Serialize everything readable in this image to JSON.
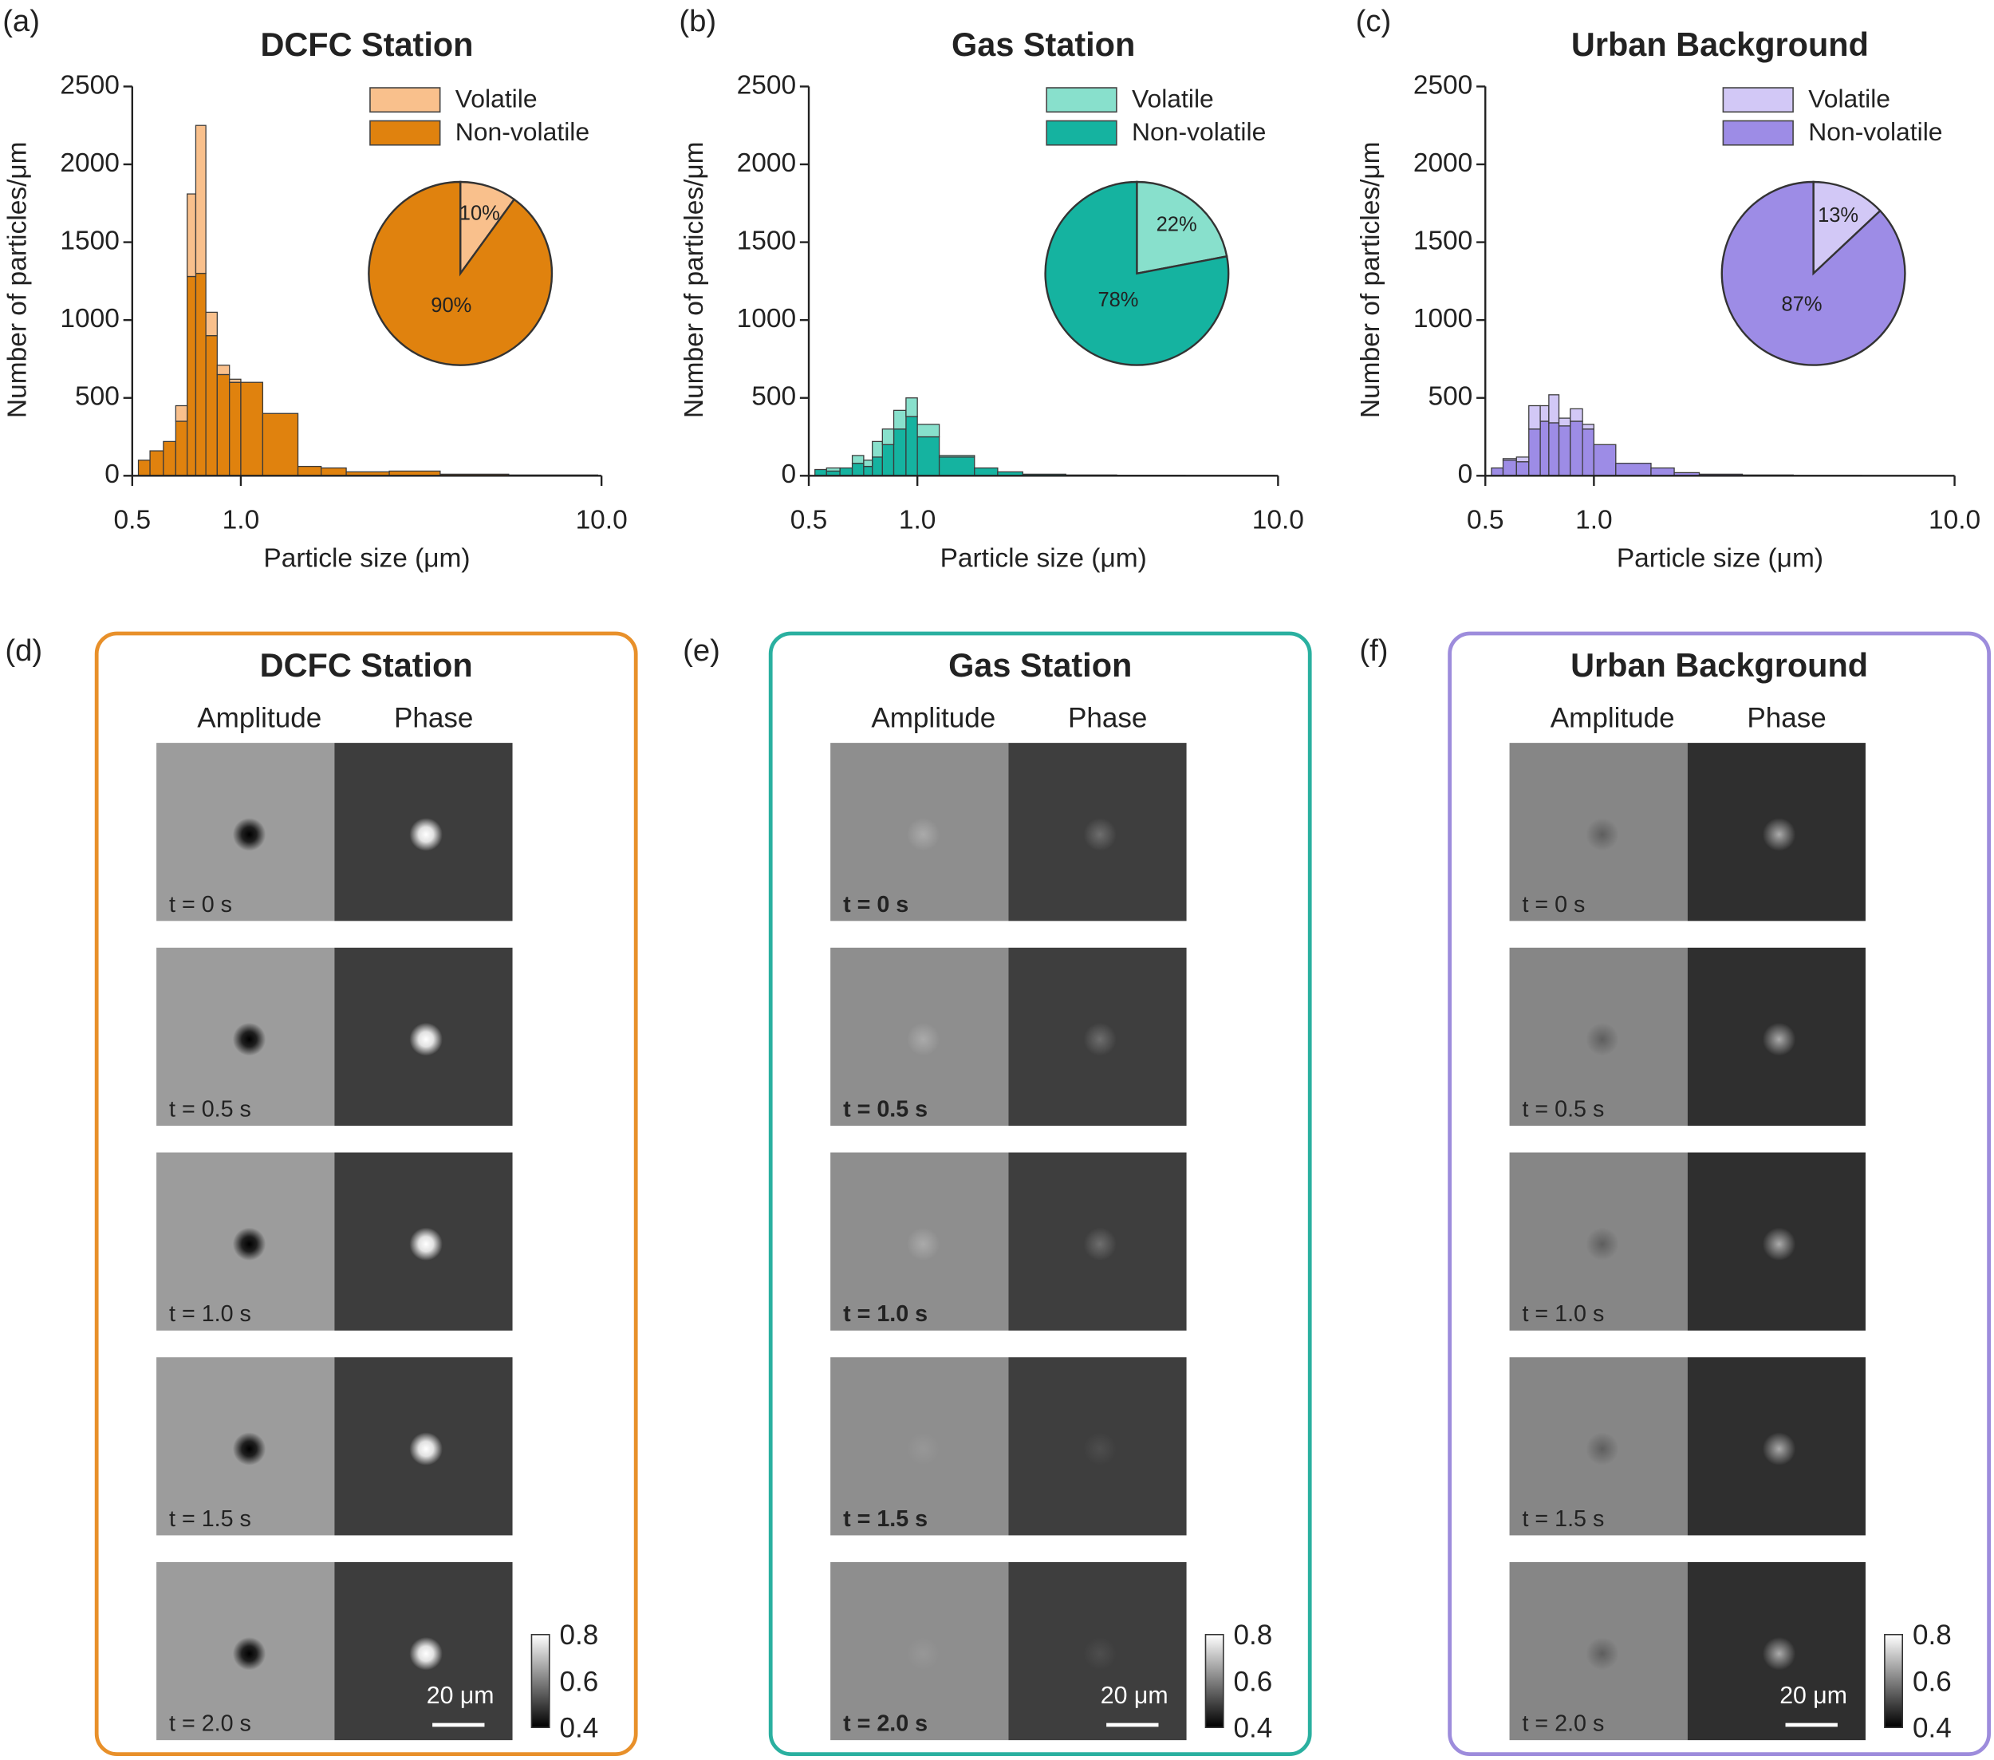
{
  "chart_data": [
    {
      "type": "histogram",
      "panel_label": "(a)",
      "title": "DCFC Station",
      "xlabel": "Particle size (μm)",
      "ylabel": "Number of particles/μm",
      "xscale": "log",
      "xlim": [
        0.5,
        10
      ],
      "xticks": [
        0.5,
        {
          "value": 1,
          "label": "1.0"
        },
        {
          "value": 10,
          "label": "10.0"
        }
      ],
      "ylim": [
        0,
        2500
      ],
      "yticks": [
        0,
        500,
        1000,
        1500,
        2000,
        2500
      ],
      "stacked": true,
      "legend": "upper right",
      "bins": [
        0.52,
        0.56,
        0.61,
        0.66,
        0.71,
        0.75,
        0.8,
        0.86,
        0.93,
        1.0,
        1.15,
        1.44,
        1.67,
        1.96,
        2.58,
        3.57,
        5.53,
        9.76
      ],
      "series": [
        {
          "name": "Volatile",
          "color": "#f9c08c",
          "values": [
            0,
            0,
            0,
            100,
            530,
            950,
            150,
            60,
            20,
            0,
            0,
            0,
            0,
            0,
            0,
            0,
            0
          ]
        },
        {
          "name": "Non-volatile",
          "color": "#e0820e",
          "values": [
            100,
            160,
            220,
            350,
            1280,
            1300,
            900,
            650,
            600,
            600,
            400,
            60,
            50,
            25,
            30,
            10,
            5
          ]
        }
      ],
      "inset": {
        "type": "pie",
        "values": [
          10,
          90
        ],
        "value_labels": [
          "10%",
          "90%"
        ]
      }
    },
    {
      "type": "histogram",
      "panel_label": "(b)",
      "title": "Gas Station",
      "xlabel": "Particle size (μm)",
      "ylabel": "Number of particles/μm",
      "xscale": "log",
      "xlim": [
        0.5,
        10
      ],
      "xticks": [
        0.5,
        {
          "value": 1,
          "label": "1.0"
        },
        {
          "value": 10,
          "label": "10.0"
        }
      ],
      "ylim": [
        0,
        2500
      ],
      "yticks": [
        0,
        500,
        1000,
        1500,
        2000,
        2500
      ],
      "stacked": true,
      "legend": "upper right",
      "bins": [
        0.52,
        0.56,
        0.61,
        0.66,
        0.71,
        0.75,
        0.8,
        0.86,
        0.93,
        1.0,
        1.15,
        1.44,
        1.67,
        1.96,
        2.58,
        3.57,
        5.53,
        9.76
      ],
      "series": [
        {
          "name": "Volatile",
          "color": "#88e0cc",
          "values": [
            0,
            20,
            0,
            50,
            40,
            100,
            100,
            120,
            120,
            80,
            10,
            0,
            0,
            0,
            0,
            0,
            0
          ]
        },
        {
          "name": "Non-volatile",
          "color": "#15b3a0",
          "values": [
            40,
            30,
            50,
            80,
            60,
            120,
            200,
            300,
            380,
            250,
            120,
            50,
            25,
            10,
            5,
            3,
            2
          ]
        }
      ],
      "inset": {
        "type": "pie",
        "values": [
          22,
          78
        ],
        "value_labels": [
          "22%",
          "78%"
        ]
      }
    },
    {
      "type": "histogram",
      "panel_label": "(c)",
      "title": "Urban Background",
      "xlabel": "Particle size (μm)",
      "ylabel": "Number of particles/μm",
      "xscale": "log",
      "xlim": [
        0.5,
        10
      ],
      "xticks": [
        0.5,
        {
          "value": 1,
          "label": "1.0"
        },
        {
          "value": 10,
          "label": "10.0"
        }
      ],
      "ylim": [
        0,
        2500
      ],
      "yticks": [
        0,
        500,
        1000,
        1500,
        2000,
        2500
      ],
      "stacked": true,
      "legend": "upper right",
      "bins": [
        0.52,
        0.56,
        0.61,
        0.66,
        0.71,
        0.75,
        0.8,
        0.86,
        0.93,
        1.0,
        1.15,
        1.44,
        1.67,
        1.96,
        2.58,
        3.57,
        5.53,
        9.76
      ],
      "series": [
        {
          "name": "Volatile",
          "color": "#d2c8f6",
          "values": [
            0,
            10,
            30,
            150,
            100,
            180,
            50,
            80,
            30,
            0,
            0,
            0,
            0,
            0,
            0,
            0,
            0
          ]
        },
        {
          "name": "Non-volatile",
          "color": "#9d8ce6",
          "values": [
            50,
            100,
            90,
            300,
            350,
            340,
            320,
            350,
            300,
            200,
            80,
            50,
            20,
            10,
            5,
            2,
            1
          ]
        }
      ],
      "inset": {
        "type": "pie",
        "values": [
          13,
          87
        ],
        "value_labels": [
          "13%",
          "87%"
        ]
      }
    }
  ],
  "panels": [
    {
      "label": "(d)",
      "title": "DCFC Station",
      "color": "#e8902a",
      "columns": [
        "Amplitude",
        "Phase"
      ],
      "times": [
        "t = 0 s",
        "t = 0.5 s",
        "t = 1.0 s",
        "t = 1.5 s",
        "t = 2.0 s"
      ],
      "colorbar_ticks": [
        "0.8",
        "0.6",
        "0.4"
      ],
      "scale_bar": "20 μm"
    },
    {
      "label": "(e)",
      "title": "Gas Station",
      "color": "#2ab0a0",
      "columns": [
        "Amplitude",
        "Phase"
      ],
      "times": [
        "t = 0 s",
        "t = 0.5 s",
        "t = 1.0 s",
        "t = 1.5 s",
        "t = 2.0 s"
      ],
      "colorbar_ticks": [
        "0.8",
        "0.6",
        "0.4"
      ],
      "scale_bar": "20 μm"
    },
    {
      "label": "(f)",
      "title": "Urban Background",
      "color": "#9d8cdc",
      "columns": [
        "Amplitude",
        "Phase"
      ],
      "times": [
        "t = 0 s",
        "t = 0.5 s",
        "t = 1.0 s",
        "t = 1.5 s",
        "t = 2.0 s"
      ],
      "colorbar_ticks": [
        "0.8",
        "0.6",
        "0.4"
      ],
      "scale_bar": "20 μm"
    }
  ]
}
